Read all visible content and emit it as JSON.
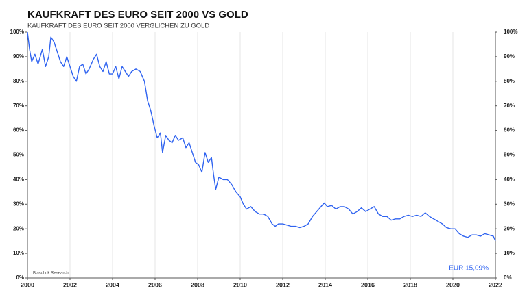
{
  "chart_data": {
    "type": "line",
    "title": "KAUFKRAFT DES EURO SEIT 2000 VS GOLD",
    "subtitle": "KAUFKRAFT  DES  EURO  SEIT  2000  VERGLICHEN  ZU  GOLD",
    "source": "Blaschok Research",
    "annotation": "EUR 15,09%",
    "color": "#2f63f0",
    "grid": "x",
    "xlim": [
      2000,
      2022
    ],
    "xticks": [
      2000,
      2002,
      2004,
      2006,
      2008,
      2010,
      2012,
      2014,
      2016,
      2018,
      2020,
      2022
    ],
    "ylim": [
      0,
      100
    ],
    "yticks": [
      {
        "value": 0,
        "label": "0%"
      },
      {
        "value": 10,
        "label": "10%"
      },
      {
        "value": 20,
        "label": "20%"
      },
      {
        "value": 30,
        "label": "30%"
      },
      {
        "value": 40,
        "label": "40%"
      },
      {
        "value": 50,
        "label": "50%"
      },
      {
        "value": 60,
        "label": "60%"
      },
      {
        "value": 70,
        "label": "70%"
      },
      {
        "value": 80,
        "label": "80%"
      },
      {
        "value": 90,
        "label": "90%"
      },
      {
        "value": 100,
        "label": "100%"
      }
    ],
    "y2lim": [
      0,
      100
    ],
    "y2ticks": [
      {
        "value": 0,
        "label": "0%"
      },
      {
        "value": 10,
        "label": "10%"
      },
      {
        "value": 20,
        "label": "20%"
      },
      {
        "value": 30,
        "label": "30%"
      },
      {
        "value": 40,
        "label": "40%"
      },
      {
        "value": 50,
        "label": "50%"
      },
      {
        "value": 60,
        "label": "60%"
      },
      {
        "value": 70,
        "label": "70%"
      },
      {
        "value": 80,
        "label": "80%"
      },
      {
        "value": 90,
        "label": "90%"
      },
      {
        "value": 100,
        "label": "100%"
      }
    ],
    "x": [
      2000.0,
      2000.1,
      2000.2,
      2000.35,
      2000.5,
      2000.7,
      2000.85,
      2001.0,
      2001.1,
      2001.25,
      2001.4,
      2001.55,
      2001.7,
      2001.85,
      2002.0,
      2002.15,
      2002.3,
      2002.45,
      2002.6,
      2002.75,
      2002.9,
      2003.1,
      2003.25,
      2003.4,
      2003.55,
      2003.7,
      2003.85,
      2004.0,
      2004.15,
      2004.3,
      2004.45,
      2004.6,
      2004.75,
      2004.9,
      2005.1,
      2005.3,
      2005.5,
      2005.65,
      2005.8,
      2005.95,
      2006.1,
      2006.25,
      2006.35,
      2006.5,
      2006.65,
      2006.8,
      2006.95,
      2007.1,
      2007.3,
      2007.45,
      2007.6,
      2007.75,
      2007.9,
      2008.05,
      2008.2,
      2008.35,
      2008.5,
      2008.65,
      2008.75,
      2008.85,
      2009.0,
      2009.2,
      2009.4,
      2009.6,
      2009.8,
      2010.0,
      2010.15,
      2010.3,
      2010.5,
      2010.7,
      2010.9,
      2011.1,
      2011.3,
      2011.5,
      2011.65,
      2011.8,
      2012.0,
      2012.2,
      2012.4,
      2012.6,
      2012.8,
      2013.0,
      2013.2,
      2013.4,
      2013.6,
      2013.8,
      2013.95,
      2014.1,
      2014.3,
      2014.5,
      2014.7,
      2014.9,
      2015.1,
      2015.3,
      2015.5,
      2015.7,
      2015.9,
      2016.1,
      2016.3,
      2016.5,
      2016.7,
      2016.9,
      2017.1,
      2017.3,
      2017.5,
      2017.7,
      2017.9,
      2018.1,
      2018.3,
      2018.5,
      2018.7,
      2018.9,
      2019.1,
      2019.3,
      2019.5,
      2019.7,
      2019.9,
      2020.1,
      2020.3,
      2020.5,
      2020.7,
      2020.9,
      2021.1,
      2021.3,
      2021.5,
      2021.7,
      2021.9,
      2022.0
    ],
    "values": [
      100,
      93,
      88,
      91,
      87,
      93,
      86,
      90,
      98,
      96,
      92,
      88,
      86,
      90,
      86,
      82,
      80,
      86,
      87,
      83,
      85,
      89,
      91,
      86,
      84,
      88,
      83,
      83,
      86,
      81,
      86,
      84,
      82,
      84,
      85,
      84,
      80,
      72,
      68,
      62,
      57,
      59,
      51,
      58,
      56,
      55,
      58,
      56,
      57,
      53,
      55,
      51,
      47,
      46,
      43,
      51,
      47,
      49,
      42,
      36,
      41,
      40,
      40,
      38,
      35,
      33,
      30,
      28,
      29,
      27,
      26,
      26,
      25,
      22,
      21,
      22,
      22,
      21.5,
      21,
      21,
      20.5,
      21,
      22,
      25,
      27,
      29,
      30.5,
      29,
      29.5,
      28,
      29,
      29,
      28,
      26,
      27,
      28.5,
      27,
      28,
      29,
      26,
      25,
      25,
      23.5,
      24,
      24,
      25,
      25.5,
      25,
      25.5,
      25,
      26.5,
      25,
      24,
      23,
      22,
      20.5,
      20,
      20,
      18,
      17,
      16.5,
      17.5,
      17.5,
      17,
      18,
      17.5,
      17,
      15.09
    ]
  }
}
